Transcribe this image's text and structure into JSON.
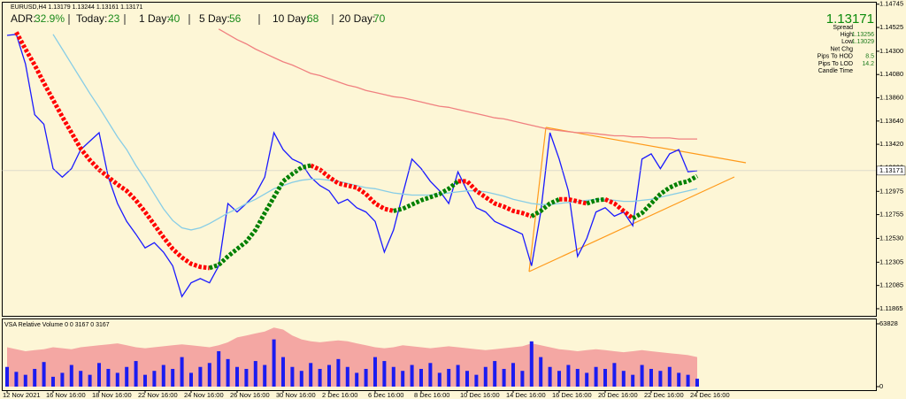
{
  "chart_data": [
    {
      "type": "line",
      "title": "EURUSD,H4 1.13179 1.13244 1.13161 1.13171",
      "annotations": [
        {
          "label": "ADR:",
          "value": "32.9%"
        },
        {
          "label": "Today:",
          "value": "23"
        },
        {
          "label": "1 Day:",
          "value": "40"
        },
        {
          "label": "5 Day:",
          "value": "56"
        },
        {
          "label": "10 Day:",
          "value": "68"
        },
        {
          "label": "20 Day:",
          "value": "70"
        }
      ],
      "last_price": 1.13171,
      "info_rows": [
        {
          "label": "Spread"
        },
        {
          "label": "High",
          "value": "1.13256"
        },
        {
          "label": "Low",
          "value": "1.13029"
        },
        {
          "label": "Net Chg"
        },
        {
          "label": "Pips To HOD",
          "value": "8.5"
        },
        {
          "label": "Pips To LOD",
          "value": "14.2"
        },
        {
          "label": "Candle Time"
        }
      ],
      "categories": [
        "12 Nov 2021",
        null,
        null,
        null,
        null,
        "16 Nov 16:00",
        null,
        null,
        null,
        null,
        "18 Nov 16:00",
        null,
        null,
        null,
        null,
        "22 Nov 16:00",
        null,
        null,
        null,
        null,
        "24 Nov 16:00",
        null,
        null,
        null,
        null,
        "26 Nov 16:00",
        null,
        null,
        null,
        null,
        "30 Nov 16:00",
        null,
        null,
        null,
        null,
        "2 Dec 16:00",
        null,
        null,
        null,
        null,
        "6 Dec 16:00",
        null,
        null,
        null,
        null,
        "8 Dec 16:00",
        null,
        null,
        null,
        null,
        "10 Dec 16:00",
        null,
        null,
        null,
        null,
        "14 Dec 16:00",
        null,
        null,
        null,
        null,
        "16 Dec 16:00",
        null,
        null,
        null,
        null,
        "20 Dec 16:00",
        null,
        null,
        null,
        null,
        "22 Dec 16:00",
        null,
        null,
        null,
        null,
        "24 Dec 16:00"
      ],
      "series": [
        {
          "color": "#1a1aff",
          "values": [
            1.1445,
            1.1446,
            1.1418,
            1.137,
            1.1361,
            1.1319,
            1.1311,
            1.1319,
            1.1337,
            1.1345,
            1.1353,
            1.1311,
            1.1286,
            1.1269,
            1.1257,
            1.1244,
            1.1249,
            1.124,
            1.1227,
            1.1198,
            1.1211,
            1.1215,
            1.1211,
            1.1227,
            1.1286,
            1.1278,
            1.1286,
            1.1295,
            1.1311,
            1.1353,
            1.1337,
            1.1328,
            1.1324,
            1.1311,
            1.1303,
            1.1298,
            1.1286,
            1.129,
            1.1282,
            1.1278,
            1.1269,
            1.124,
            1.1261,
            1.1295,
            1.1328,
            1.1319,
            1.1307,
            1.1298,
            1.1286,
            1.1316,
            1.1298,
            1.1282,
            1.1278,
            1.1269,
            1.1265,
            1.1261,
            1.1257,
            1.1227,
            1.1278,
            1.1353,
            1.1328,
            1.1298,
            1.1236,
            1.1253,
            1.1278,
            1.1282,
            1.1274,
            1.1278,
            1.1265,
            1.1328,
            1.1333,
            1.1319,
            1.1333,
            1.1337,
            1.1316,
            1.1317
          ]
        },
        {
          "color": "#f08080",
          "values": [
            null,
            null,
            null,
            null,
            null,
            null,
            null,
            null,
            null,
            null,
            null,
            null,
            null,
            null,
            null,
            null,
            null,
            null,
            null,
            null,
            null,
            null,
            null,
            1.1451,
            1.1446,
            1.1441,
            1.1437,
            1.1432,
            1.1428,
            1.1424,
            1.142,
            1.1417,
            1.1413,
            1.1409,
            1.1407,
            1.1404,
            1.1401,
            1.1398,
            1.1396,
            1.1393,
            1.1391,
            1.1389,
            1.1387,
            1.1386,
            1.1384,
            1.1382,
            1.138,
            1.1378,
            1.1377,
            1.1375,
            1.1373,
            1.1371,
            1.1369,
            1.1367,
            1.1366,
            1.1364,
            1.1362,
            1.136,
            1.1358,
            1.1356,
            1.1355,
            1.1354,
            1.1353,
            1.1353,
            1.1352,
            1.1351,
            1.135,
            1.135,
            1.1349,
            1.1349,
            1.1348,
            1.1348,
            1.1348,
            1.1347,
            1.1347,
            1.1347
          ]
        },
        {
          "color": "#87cde6",
          "values": [
            null,
            null,
            null,
            null,
            null,
            1.1446,
            1.1432,
            1.1418,
            1.1404,
            1.139,
            1.1377,
            1.1363,
            1.1349,
            1.1337,
            1.1322,
            1.1309,
            1.1295,
            1.1281,
            1.127,
            1.1263,
            1.1261,
            1.1263,
            1.1267,
            1.1272,
            1.1277,
            1.1281,
            1.1286,
            1.129,
            1.1295,
            1.13,
            1.1303,
            1.1306,
            1.1308,
            1.1309,
            1.1309,
            1.1308,
            1.1307,
            1.1305,
            1.1303,
            1.1301,
            1.13,
            1.1298,
            1.1296,
            1.1295,
            1.1294,
            1.1294,
            1.1294,
            1.1295,
            1.1296,
            1.1297,
            1.1298,
            1.1298,
            1.1297,
            1.1295,
            1.1293,
            1.129,
            1.1288,
            1.1286,
            1.1285,
            1.1285,
            1.1286,
            1.1287,
            1.1288,
            1.1289,
            1.129,
            1.129,
            1.1289,
            1.1288,
            1.1288,
            1.1289,
            1.129,
            1.1292,
            1.1294,
            1.1296,
            1.1298,
            1.13
          ]
        },
        {
          "color": "#ff0000",
          "line_style": "dotted",
          "values": [
            null,
            1.1448,
            1.1432,
            1.1417,
            1.14,
            1.1384,
            1.1368,
            1.1353,
            1.1338,
            1.1327,
            1.1318,
            1.1311,
            1.1304,
            1.1298,
            1.1289,
            1.1278,
            1.1266,
            1.1254,
            1.1243,
            1.1235,
            1.1229,
            1.1226,
            1.1225,
            null,
            null,
            null,
            null,
            null,
            null,
            null,
            null,
            null,
            null,
            1.1322,
            1.1318,
            1.1311,
            1.1305,
            1.1303,
            1.1301,
            1.1295,
            1.1286,
            1.1281,
            1.1279,
            null,
            null,
            null,
            null,
            null,
            null,
            1.1307,
            1.1307,
            1.1298,
            1.1292,
            1.1286,
            1.1283,
            1.1279,
            1.1277,
            1.1274,
            null,
            null,
            1.129,
            1.129,
            1.1288,
            1.1286,
            null,
            1.129,
            1.1286,
            1.1279,
            1.1272,
            null,
            null,
            null,
            null,
            null,
            null,
            null
          ]
        },
        {
          "color": "#008000",
          "line_style": "dotted",
          "values": [
            null,
            null,
            null,
            null,
            null,
            null,
            null,
            null,
            null,
            null,
            null,
            null,
            null,
            null,
            null,
            null,
            null,
            null,
            null,
            null,
            null,
            null,
            1.1225,
            1.1228,
            1.1236,
            1.1243,
            1.125,
            1.1261,
            1.1277,
            1.1292,
            1.1307,
            1.1314,
            1.132,
            1.1322,
            null,
            null,
            null,
            null,
            null,
            null,
            null,
            null,
            1.1279,
            1.1281,
            1.1285,
            1.1289,
            1.1292,
            1.1295,
            1.13,
            1.1307,
            null,
            null,
            null,
            null,
            null,
            null,
            null,
            1.1274,
            1.1279,
            1.1286,
            1.129,
            null,
            null,
            1.1286,
            1.1289,
            1.129,
            null,
            null,
            1.1272,
            1.1277,
            1.1286,
            1.1295,
            1.1301,
            1.1305,
            1.1307,
            1.1312
          ]
        }
      ],
      "ylim": [
        1.11806,
        1.14768
      ],
      "yticks": [
        1.14745,
        1.14525,
        {
          "value": 1.143,
          "label": "1.14300"
        },
        {
          "value": 1.1408,
          "label": "1.14080"
        },
        {
          "value": 1.1386,
          "label": "1.13860"
        },
        {
          "value": 1.1364,
          "label": "1.13640"
        },
        {
          "value": 1.1342,
          "label": "1.13420"
        },
        {
          "value": 1.132,
          "label": "1.13200"
        },
        1.12975,
        1.12755,
        {
          "value": 1.1253,
          "label": "1.12530"
        },
        1.12305,
        1.12085,
        1.11865
      ]
    },
    {
      "type": "bar",
      "title": "VSA Relative Volume 0 0 3167 0 3167",
      "series": [
        {
          "type": "area",
          "color": "#f4a7a3",
          "values": [
            40000,
            38000,
            36000,
            37000,
            38000,
            40000,
            39000,
            38000,
            40000,
            41000,
            42000,
            43000,
            44000,
            42000,
            40000,
            39000,
            40000,
            41000,
            42000,
            43000,
            42000,
            41000,
            40000,
            42000,
            45000,
            50000,
            52000,
            54000,
            56000,
            60000,
            58000,
            52000,
            48000,
            46000,
            45000,
            46000,
            47000,
            46000,
            44000,
            42000,
            40000,
            39000,
            40000,
            42000,
            41000,
            40000,
            39000,
            40000,
            41000,
            40000,
            39000,
            38000,
            37000,
            38000,
            39000,
            40000,
            41000,
            44000,
            42000,
            40000,
            38000,
            37000,
            36000,
            37000,
            38000,
            37000,
            36000,
            35000,
            36000,
            37000,
            36000,
            35000,
            34000,
            33000,
            32000,
            30000
          ]
        },
        {
          "type": "bar",
          "color": "#1c1cf0",
          "values": [
            20000,
            15000,
            12000,
            18000,
            25000,
            10000,
            14000,
            22000,
            16000,
            12000,
            24000,
            18000,
            14000,
            20000,
            26000,
            12000,
            16000,
            22000,
            18000,
            30000,
            14000,
            20000,
            24000,
            36000,
            28000,
            20000,
            18000,
            26000,
            22000,
            48000,
            30000,
            20000,
            16000,
            24000,
            18000,
            22000,
            28000,
            20000,
            14000,
            18000,
            30000,
            26000,
            20000,
            16000,
            22000,
            18000,
            24000,
            14000,
            18000,
            22000,
            16000,
            12000,
            20000,
            26000,
            18000,
            24000,
            16000,
            46000,
            30000,
            20000,
            16000,
            22000,
            18000,
            14000,
            20000,
            18000,
            24000,
            16000,
            12000,
            22000,
            18000,
            16000,
            20000,
            14000,
            12000,
            8000
          ]
        }
      ],
      "ylim": [
        0,
        63828
      ],
      "yticks": [
        0,
        63828
      ]
    }
  ]
}
